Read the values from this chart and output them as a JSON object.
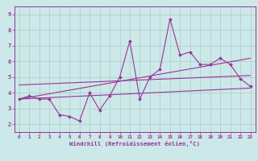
{
  "xlabel": "Windchill (Refroidissement éolien,°C)",
  "bg_color": "#cce8e8",
  "grid_color": "#aacccc",
  "line_color": "#993399",
  "spine_color": "#993399",
  "x_ticks": [
    0,
    1,
    2,
    3,
    4,
    5,
    6,
    7,
    8,
    9,
    10,
    11,
    12,
    13,
    14,
    15,
    16,
    17,
    18,
    19,
    20,
    21,
    22,
    23
  ],
  "xlim": [
    -0.5,
    23.5
  ],
  "ylim": [
    1.5,
    9.5
  ],
  "y_ticks": [
    2,
    3,
    4,
    5,
    6,
    7,
    8,
    9
  ],
  "series1_x": [
    0,
    1,
    2,
    3,
    4,
    5,
    6,
    7,
    8,
    9,
    10,
    11,
    12,
    13,
    14,
    15,
    16,
    17,
    18,
    19,
    20,
    21,
    22,
    23
  ],
  "series1_y": [
    3.6,
    3.8,
    3.6,
    3.6,
    2.6,
    2.5,
    2.2,
    4.0,
    2.9,
    3.8,
    5.0,
    7.3,
    3.6,
    5.0,
    5.5,
    8.7,
    6.4,
    6.6,
    5.8,
    5.8,
    6.2,
    5.8,
    4.9,
    4.4
  ],
  "line2_x": [
    0,
    23
  ],
  "line2_y": [
    3.6,
    4.3
  ],
  "line3_x": [
    0,
    23
  ],
  "line3_y": [
    3.6,
    6.2
  ],
  "line4_x": [
    0,
    23
  ],
  "line4_y": [
    4.5,
    5.1
  ]
}
